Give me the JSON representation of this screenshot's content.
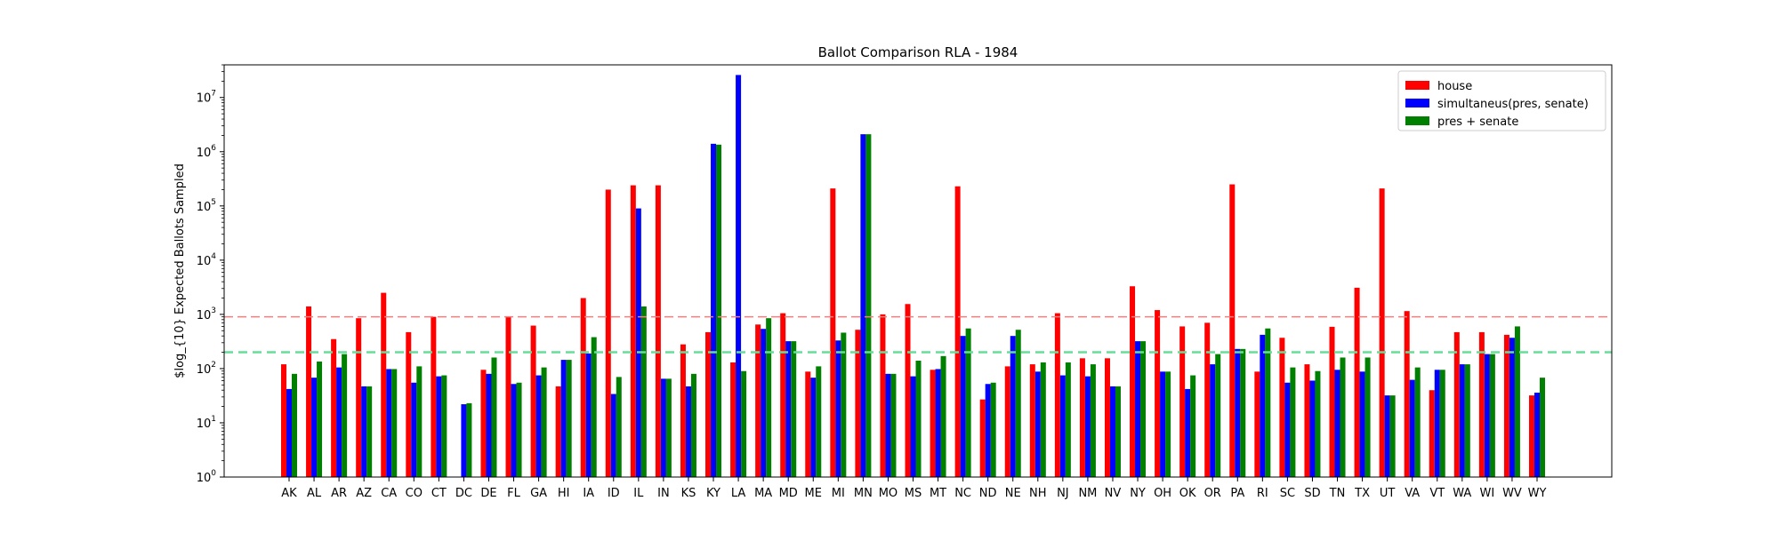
{
  "chart_data": {
    "type": "bar",
    "title": "Ballot Comparison RLA - 1984",
    "xlabel": "",
    "ylabel": "$log_{10} Expected Ballots Sampled",
    "yscale": "log",
    "ylim": [
      1,
      40000000
    ],
    "grid": false,
    "legend_position": "top-right",
    "categories": [
      "AK",
      "AL",
      "AR",
      "AZ",
      "CA",
      "CO",
      "CT",
      "DC",
      "DE",
      "FL",
      "GA",
      "HI",
      "IA",
      "ID",
      "IL",
      "IN",
      "KS",
      "KY",
      "LA",
      "MA",
      "MD",
      "ME",
      "MI",
      "MN",
      "MO",
      "MS",
      "MT",
      "NC",
      "ND",
      "NE",
      "NH",
      "NJ",
      "NM",
      "NV",
      "NY",
      "OH",
      "OK",
      "OR",
      "PA",
      "RI",
      "SC",
      "SD",
      "TN",
      "TX",
      "UT",
      "VA",
      "VT",
      "WA",
      "WI",
      "WV",
      "WY"
    ],
    "series": [
      {
        "name": "house",
        "color": "#ff0000",
        "values": [
          120,
          1400,
          350,
          850,
          2500,
          470,
          900,
          null,
          95,
          900,
          620,
          47,
          2000,
          200000,
          240000,
          240000,
          280,
          470,
          130,
          650,
          1050,
          88,
          210000,
          520,
          1000,
          1550,
          95,
          230000,
          27,
          110,
          120,
          1050,
          155,
          155,
          3300,
          1200,
          600,
          700,
          250000,
          88,
          370,
          120,
          590,
          3100,
          210000,
          1150,
          40,
          470,
          470,
          420,
          32
        ]
      },
      {
        "name": "simultaneus(pres, senate)",
        "color": "#0000ff",
        "values": [
          42,
          68,
          105,
          47,
          98,
          55,
          72,
          22,
          80,
          52,
          75,
          145,
          190,
          34,
          90000,
          65,
          47,
          1400000,
          26000000,
          540,
          320,
          68,
          330,
          2100000,
          80,
          72,
          98,
          400,
          52,
          400,
          88,
          75,
          72,
          47,
          320,
          88,
          42,
          120,
          230,
          420,
          55,
          60,
          95,
          88,
          32,
          62,
          95,
          120,
          185,
          370,
          36
        ]
      },
      {
        "name": "pres + senate",
        "color": "#008000",
        "values": [
          80,
          135,
          185,
          47,
          98,
          110,
          75,
          23,
          160,
          55,
          105,
          145,
          380,
          70,
          1400,
          65,
          80,
          1350000,
          90,
          850,
          320,
          110,
          460,
          2100000,
          80,
          140,
          170,
          550,
          55,
          520,
          130,
          130,
          120,
          47,
          320,
          88,
          75,
          185,
          230,
          550,
          105,
          90,
          160,
          160,
          32,
          105,
          95,
          120,
          185,
          600,
          68
        ]
      }
    ],
    "reference_lines": [
      {
        "value": 900,
        "color": "#f08080",
        "style": "dashed"
      },
      {
        "value": 200,
        "color": "#66dd99",
        "style": "dashed"
      }
    ]
  }
}
